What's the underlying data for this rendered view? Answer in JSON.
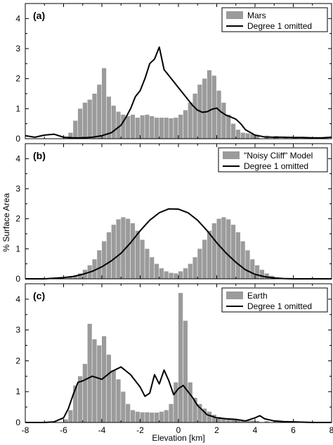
{
  "figure": {
    "ylabel": "% Surface Area",
    "xlabel": "Elevation [km]"
  },
  "chart_data": [
    {
      "type": "bar",
      "panel_label": "(a)",
      "xlim": [
        -8,
        8
      ],
      "ylim": [
        0,
        4.5
      ],
      "y_ticks": [
        0,
        1,
        2,
        3,
        4
      ],
      "x_ticks": [
        -8,
        -6,
        -4,
        -2,
        0,
        2,
        4,
        6,
        8
      ],
      "bar_color": "#9b9b9b",
      "line_color": "#000000",
      "legend_position": "top-right",
      "series": [
        {
          "name": "Mars",
          "kind": "histogram",
          "x": [
            -6.0,
            -5.75,
            -5.5,
            -5.25,
            -5.0,
            -4.75,
            -4.5,
            -4.25,
            -4.0,
            -3.75,
            -3.5,
            -3.25,
            -3.0,
            -2.75,
            -2.5,
            -2.25,
            -2.0,
            -1.75,
            -1.5,
            -1.25,
            -1.0,
            -0.75,
            -0.5,
            -0.25,
            0.0,
            0.25,
            0.5,
            0.75,
            1.0,
            1.25,
            1.5,
            1.75,
            2.0,
            2.25,
            2.5,
            2.75,
            3.0,
            3.25,
            3.5,
            3.75,
            4.0,
            4.5,
            5.0,
            5.5,
            6.0,
            6.5,
            7.0,
            7.5
          ],
          "values": [
            0.05,
            0.2,
            0.6,
            1.0,
            1.2,
            1.3,
            1.5,
            1.8,
            2.35,
            1.4,
            1.1,
            0.9,
            0.8,
            0.75,
            0.8,
            0.7,
            0.78,
            0.8,
            0.75,
            0.7,
            0.7,
            0.7,
            0.68,
            0.7,
            0.8,
            0.95,
            1.2,
            1.5,
            1.8,
            2.0,
            2.28,
            2.1,
            1.6,
            1.2,
            0.8,
            0.5,
            0.3,
            0.2,
            0.18,
            0.15,
            0.12,
            0.1,
            0.09,
            0.07,
            0.06,
            0.04,
            0.03,
            0.02
          ]
        },
        {
          "name": "Degree 1 omitted",
          "kind": "line",
          "x": [
            -8,
            -7.5,
            -7,
            -6.5,
            -6,
            -5.5,
            -5,
            -4.5,
            -4,
            -3.5,
            -3,
            -2.75,
            -2.5,
            -2.25,
            -2,
            -1.75,
            -1.5,
            -1.25,
            -1.0,
            -0.75,
            -0.5,
            -0.25,
            0,
            0.25,
            0.5,
            0.75,
            1.0,
            1.25,
            1.5,
            1.75,
            2.0,
            2.25,
            2.5,
            2.75,
            3.0,
            3.25,
            3.5,
            4,
            4.5,
            5,
            5.5,
            6,
            6.5,
            7,
            7.5,
            8
          ],
          "values": [
            0.1,
            0.05,
            0.12,
            0.15,
            0.05,
            0.03,
            0.03,
            0.05,
            0.1,
            0.2,
            0.45,
            0.7,
            1.0,
            1.4,
            1.6,
            2.0,
            2.5,
            2.65,
            3.05,
            2.3,
            2.1,
            1.9,
            1.7,
            1.5,
            1.3,
            1.1,
            0.95,
            0.88,
            0.9,
            0.98,
            1.02,
            0.88,
            0.78,
            0.72,
            0.65,
            0.5,
            0.3,
            0.12,
            0.06,
            0.05,
            0.05,
            0.04,
            0.04,
            0.03,
            0.03,
            0.05
          ]
        }
      ]
    },
    {
      "type": "bar",
      "panel_label": "(b)",
      "xlim": [
        -8,
        8
      ],
      "ylim": [
        0,
        4.5
      ],
      "y_ticks": [
        0,
        1,
        2,
        3,
        4
      ],
      "x_ticks": [
        -8,
        -6,
        -4,
        -2,
        0,
        2,
        4,
        6,
        8
      ],
      "bar_color": "#9b9b9b",
      "line_color": "#000000",
      "legend_position": "top-right",
      "series": [
        {
          "name": "\"Noisy Cliff\" Model",
          "kind": "histogram",
          "x": [
            -6.0,
            -5.75,
            -5.5,
            -5.25,
            -5.0,
            -4.75,
            -4.5,
            -4.25,
            -4.0,
            -3.75,
            -3.5,
            -3.25,
            -3.0,
            -2.75,
            -2.5,
            -2.25,
            -2.0,
            -1.75,
            -1.5,
            -1.25,
            -1.0,
            -0.75,
            -0.5,
            -0.25,
            0.0,
            0.25,
            0.5,
            0.75,
            1.0,
            1.25,
            1.5,
            1.75,
            2.0,
            2.25,
            2.5,
            2.75,
            3.0,
            3.25,
            3.5,
            3.75,
            4.0,
            4.25,
            4.5,
            4.75,
            5.0,
            5.25,
            5.5,
            5.75,
            6.0
          ],
          "values": [
            0.02,
            0.05,
            0.1,
            0.18,
            0.3,
            0.45,
            0.65,
            0.95,
            1.25,
            1.55,
            1.8,
            1.98,
            2.05,
            2.0,
            1.85,
            1.6,
            1.3,
            1.0,
            0.72,
            0.5,
            0.35,
            0.25,
            0.2,
            0.18,
            0.25,
            0.35,
            0.5,
            0.72,
            1.0,
            1.3,
            1.6,
            1.85,
            2.0,
            2.05,
            1.98,
            1.8,
            1.55,
            1.25,
            0.95,
            0.65,
            0.45,
            0.3,
            0.18,
            0.1,
            0.05,
            0.03,
            0.02,
            0.01,
            0.01
          ]
        },
        {
          "name": "Degree 1 omitted",
          "kind": "line",
          "x": [
            -8,
            -7,
            -6.5,
            -6,
            -5.5,
            -5,
            -4.5,
            -4,
            -3.5,
            -3,
            -2.5,
            -2,
            -1.5,
            -1,
            -0.5,
            0,
            0.5,
            1,
            1.5,
            2,
            2.5,
            3,
            3.5,
            4,
            4.5,
            5,
            5.5,
            6,
            7,
            8
          ],
          "values": [
            0,
            0,
            0.02,
            0.04,
            0.08,
            0.15,
            0.25,
            0.4,
            0.6,
            0.85,
            1.2,
            1.6,
            1.95,
            2.2,
            2.33,
            2.32,
            2.2,
            1.95,
            1.6,
            1.2,
            0.85,
            0.55,
            0.3,
            0.15,
            0.07,
            0.03,
            0.01,
            0,
            0,
            0
          ]
        }
      ]
    },
    {
      "type": "bar",
      "panel_label": "(c)",
      "xlim": [
        -8,
        8
      ],
      "ylim": [
        0,
        4.5
      ],
      "y_ticks": [
        0,
        1,
        2,
        3,
        4
      ],
      "x_ticks": [
        -8,
        -6,
        -4,
        -2,
        0,
        2,
        4,
        6,
        8
      ],
      "bar_color": "#9b9b9b",
      "line_color": "#000000",
      "legend_position": "top-right",
      "series": [
        {
          "name": "Earth",
          "kind": "histogram",
          "x": [
            -6.0,
            -5.75,
            -5.5,
            -5.25,
            -5.0,
            -4.75,
            -4.5,
            -4.25,
            -4.0,
            -3.75,
            -3.5,
            -3.25,
            -3.0,
            -2.75,
            -2.5,
            -2.25,
            -2.0,
            -1.75,
            -1.5,
            -1.25,
            -1.0,
            -0.75,
            -0.5,
            -0.25,
            0.0,
            0.25,
            0.5,
            0.75,
            1.0,
            1.25,
            1.5,
            1.75,
            2.0,
            2.25,
            2.5,
            2.75,
            3.0,
            3.25,
            3.5,
            3.75,
            4.0,
            4.5,
            5.0,
            5.5,
            6.0,
            6.5
          ],
          "values": [
            0.1,
            0.4,
            1.2,
            1.5,
            1.9,
            3.2,
            2.7,
            2.5,
            2.8,
            2.2,
            1.7,
            1.4,
            1.0,
            0.6,
            0.4,
            0.35,
            0.33,
            0.33,
            0.32,
            0.32,
            0.35,
            0.4,
            0.6,
            1.3,
            4.2,
            3.3,
            1.3,
            0.8,
            0.6,
            0.45,
            0.35,
            0.25,
            0.18,
            0.14,
            0.12,
            0.1,
            0.1,
            0.08,
            0.07,
            0.06,
            0.05,
            0.04,
            0.02,
            0.01,
            0.01,
            0.0
          ]
        },
        {
          "name": "Degree 1 omitted",
          "kind": "line",
          "x": [
            -8,
            -7,
            -6.5,
            -6,
            -5.75,
            -5.5,
            -5.25,
            -5,
            -4.5,
            -4,
            -3.5,
            -3,
            -2.5,
            -2,
            -1.75,
            -1.5,
            -1.25,
            -1.0,
            -0.75,
            -0.5,
            -0.25,
            0,
            0.25,
            0.5,
            0.75,
            1,
            1.5,
            2,
            2.5,
            3,
            3.5,
            4,
            4.25,
            4.5,
            5,
            5.5,
            6,
            7,
            8
          ],
          "values": [
            0,
            0,
            0.02,
            0.15,
            0.45,
            0.9,
            1.3,
            1.35,
            1.5,
            1.4,
            1.65,
            1.8,
            1.55,
            1.15,
            0.85,
            0.95,
            1.55,
            1.25,
            1.7,
            1.35,
            0.9,
            1.1,
            1.2,
            1.0,
            0.8,
            0.55,
            0.25,
            0.15,
            0.12,
            0.1,
            0.05,
            0.15,
            0.22,
            0.12,
            0.05,
            0.03,
            0.02,
            0,
            0
          ]
        }
      ]
    }
  ]
}
